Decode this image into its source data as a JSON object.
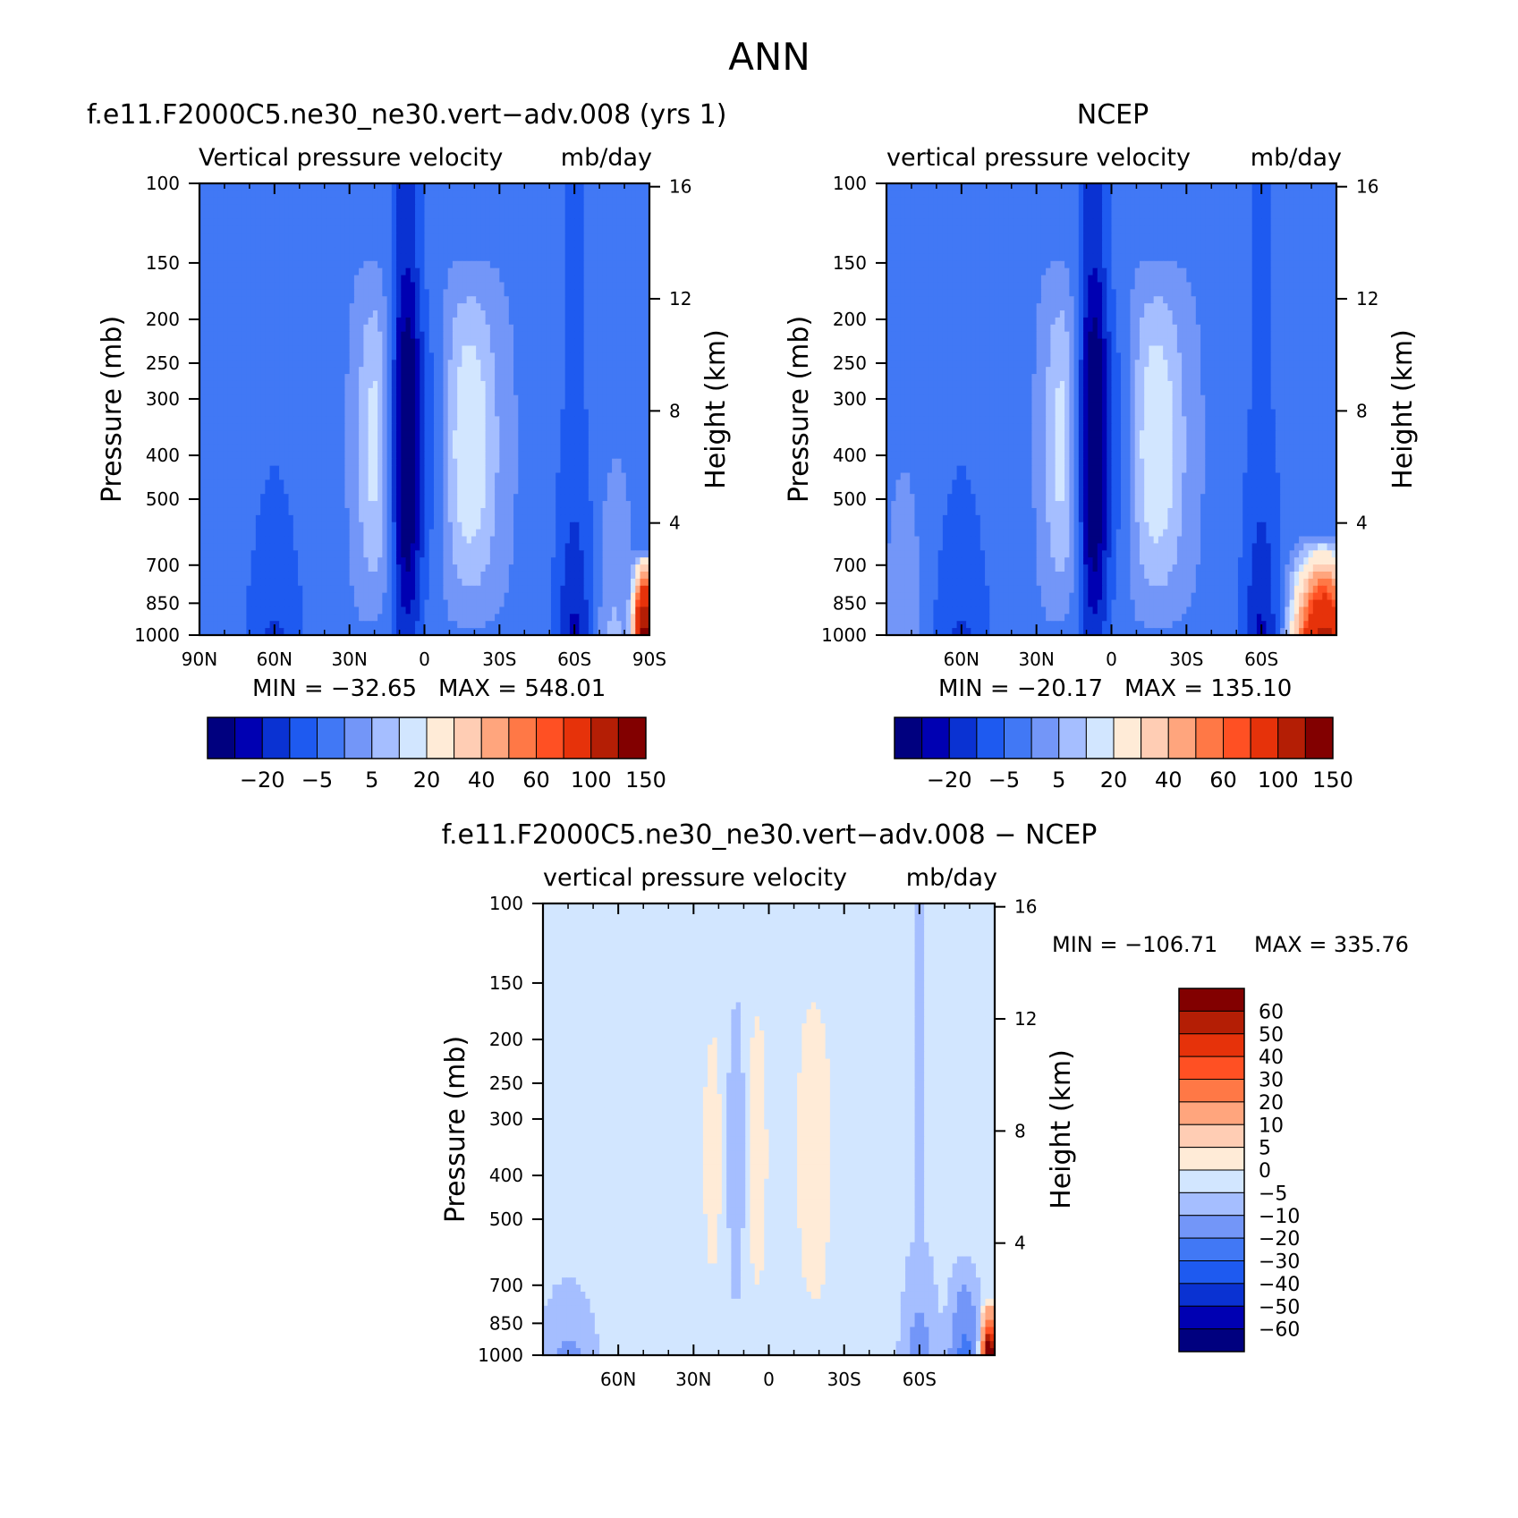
{
  "page_title": "ANN",
  "chart_data": [
    {
      "type": "heatmap",
      "title": "f.e11.F2000C5.ne30_ne30.vert−adv.008 (yrs 1)",
      "subtitle_left": "Vertical pressure velocity",
      "subtitle_right": "mb/day",
      "ylabel": "Pressure (mb)",
      "ylabel_right": "Height (km)",
      "x_ticks": [
        "90N",
        "60N",
        "30N",
        "0",
        "30S",
        "60S",
        "90S"
      ],
      "y_ticks": [
        "100",
        "150",
        "200",
        "250",
        "300",
        "400",
        "500",
        "700",
        "850",
        "1000"
      ],
      "y_right_ticks": [
        "16",
        "12",
        "8",
        "4"
      ],
      "y_scale": "log",
      "xlim": [
        "90N",
        "90S"
      ],
      "ylim": [
        1000,
        100
      ],
      "min_label": "MIN = −32.65",
      "max_label": "MAX = 548.01",
      "colorbar_labels": [
        "−20",
        "−5",
        "5",
        "20",
        "40",
        "60",
        "100",
        "150"
      ],
      "features": {
        "min_value": -32.65,
        "max_value": 548.01,
        "strong_ascent_lat": 7,
        "subsidence_lats": [
          -18,
          20
        ]
      }
    },
    {
      "type": "heatmap",
      "title": "NCEP",
      "subtitle_left": "vertical pressure velocity",
      "subtitle_right": "mb/day",
      "ylabel": "Pressure (mb)",
      "ylabel_right": "Height (km)",
      "x_ticks": [
        "60N",
        "30N",
        "0",
        "30S",
        "60S"
      ],
      "y_ticks": [
        "100",
        "150",
        "200",
        "250",
        "300",
        "400",
        "500",
        "700",
        "850",
        "1000"
      ],
      "y_right_ticks": [
        "16",
        "12",
        "8",
        "4"
      ],
      "y_scale": "log",
      "ylim": [
        1000,
        100
      ],
      "min_label": "MIN = −20.17",
      "max_label": "MAX = 135.10",
      "colorbar_labels": [
        "−20",
        "−5",
        "5",
        "20",
        "40",
        "60",
        "100",
        "150"
      ],
      "features": {
        "min_value": -20.17,
        "max_value": 135.1,
        "strong_ascent_lat": 7,
        "subsidence_lats": [
          -20,
          22
        ]
      }
    },
    {
      "type": "heatmap",
      "title": "f.e11.F2000C5.ne30_ne30.vert−adv.008 − NCEP",
      "subtitle_left": "vertical pressure velocity",
      "subtitle_right": "mb/day",
      "ylabel": "Pressure (mb)",
      "ylabel_right": "Height (km)",
      "x_ticks": [
        "60N",
        "30N",
        "0",
        "30S",
        "60S"
      ],
      "y_ticks": [
        "100",
        "150",
        "200",
        "250",
        "300",
        "400",
        "500",
        "700",
        "850",
        "1000"
      ],
      "y_right_ticks": [
        "16",
        "12",
        "8",
        "4"
      ],
      "y_scale": "log",
      "ylim": [
        1000,
        100
      ],
      "min_label": "MIN = −106.71",
      "max_label": "MAX = 335.76",
      "colorbar_labels": [
        "60",
        "50",
        "40",
        "30",
        "20",
        "10",
        "5",
        "0",
        "−5",
        "−10",
        "−20",
        "−30",
        "−40",
        "−50",
        "−60"
      ],
      "features": {
        "min_value": -106.71,
        "max_value": 335.76
      }
    }
  ],
  "colors": {
    "blue_red_16": [
      "#00007f",
      "#0000b2",
      "#0a32d2",
      "#1e5af0",
      "#4178f5",
      "#7396f8",
      "#a5beff",
      "#d2e6ff",
      "#ffebd7",
      "#ffcdb4",
      "#ffa57d",
      "#ff7846",
      "#ff5023",
      "#e6320a",
      "#b41e05",
      "#820000"
    ]
  }
}
